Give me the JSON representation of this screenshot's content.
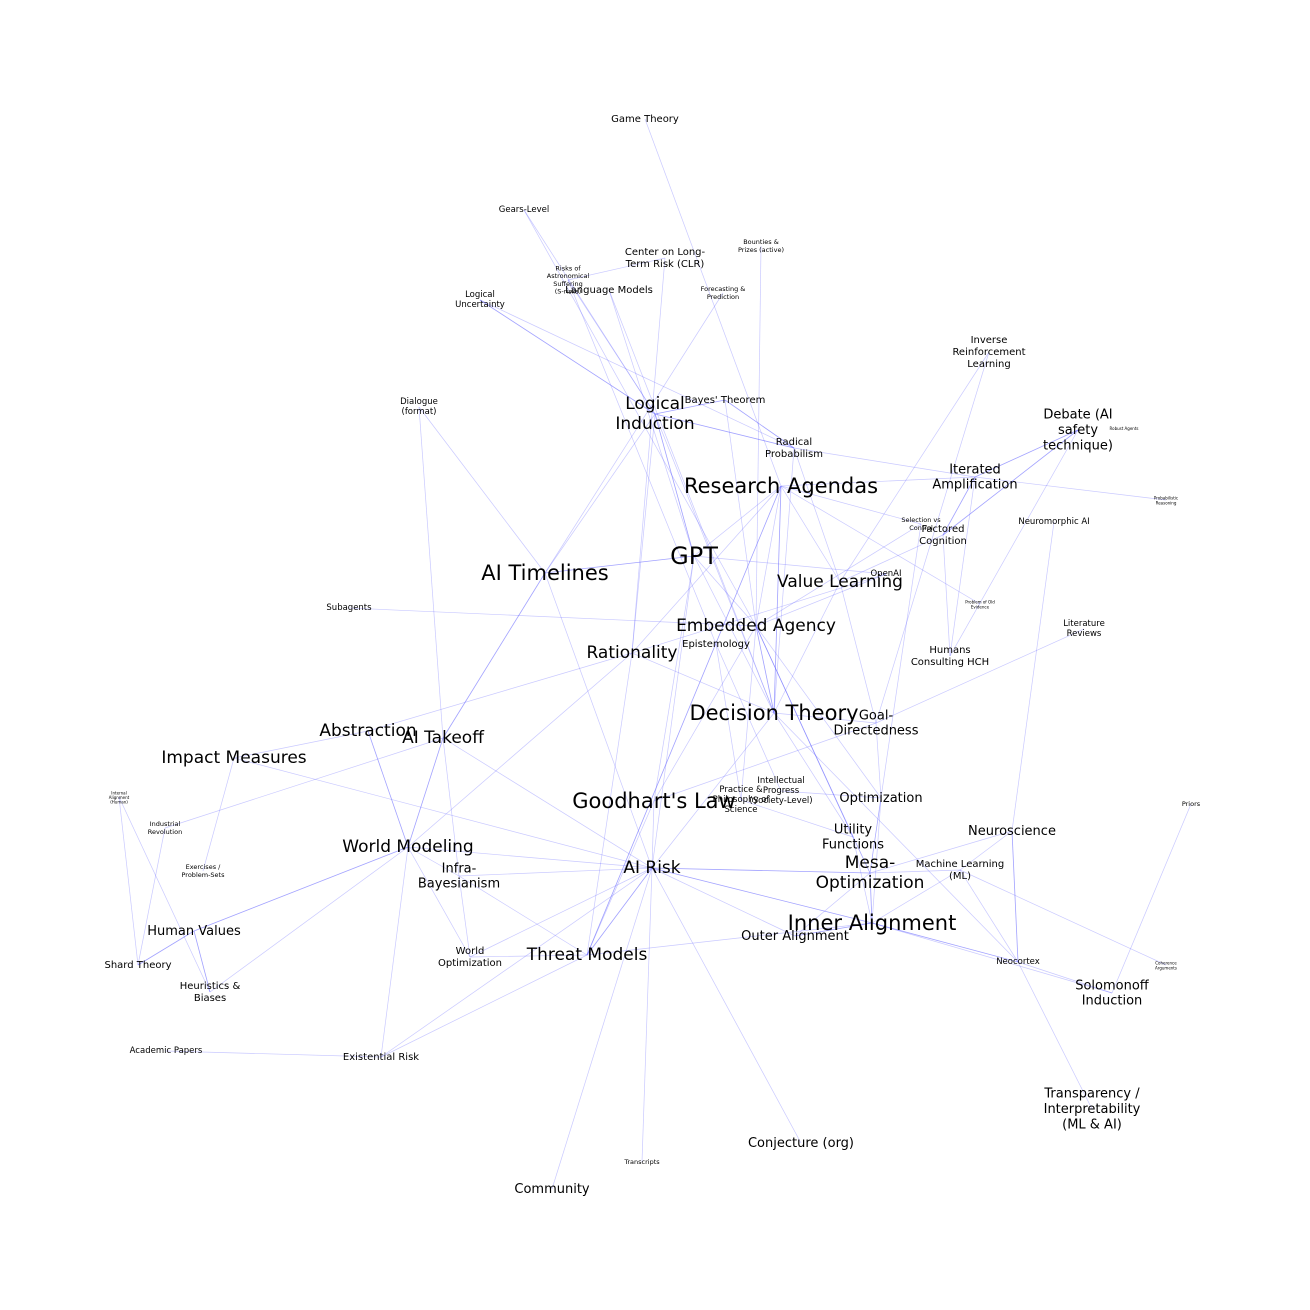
{
  "graph": {
    "colors": {
      "edge": "#6464ff",
      "label": "#000000",
      "background": "#ffffff"
    },
    "nodes": [
      {
        "id": "game_theory",
        "label": [
          "Game Theory"
        ],
        "size": "s"
      },
      {
        "id": "gears_level",
        "label": [
          "Gears-Level"
        ],
        "size": "xs"
      },
      {
        "id": "clr",
        "label": [
          "Center on Long-",
          "Term Risk (CLR)"
        ],
        "size": "s"
      },
      {
        "id": "bounties",
        "label": [
          "Bounties &",
          "Prizes (active)"
        ],
        "size": "xxs"
      },
      {
        "id": "risks_suffering",
        "label": [
          "Risks of",
          "Astronomical",
          "Suffering",
          "(S-risks)"
        ],
        "size": "xxs"
      },
      {
        "id": "language_models",
        "label": [
          "Language Models"
        ],
        "size": "s"
      },
      {
        "id": "forecasting",
        "label": [
          "Forecasting &",
          "Prediction"
        ],
        "size": "xxs"
      },
      {
        "id": "logical_uncertainty",
        "label": [
          "Logical",
          "Uncertainty"
        ],
        "size": "xs"
      },
      {
        "id": "inverse_rl",
        "label": [
          "Inverse",
          "Reinforcement",
          "Learning"
        ],
        "size": "s"
      },
      {
        "id": "dialogue",
        "label": [
          "Dialogue",
          "(format)"
        ],
        "size": "xs"
      },
      {
        "id": "logical_induction",
        "label": [
          "Logical",
          "Induction"
        ],
        "size": "l"
      },
      {
        "id": "bayes",
        "label": [
          "Bayes' Theorem"
        ],
        "size": "s"
      },
      {
        "id": "debate",
        "label": [
          "Debate (AI",
          "safety",
          "technique)"
        ],
        "size": "m"
      },
      {
        "id": "robust_agents",
        "label": [
          "Robust Agents"
        ],
        "size": "xxxs"
      },
      {
        "id": "radical_prob",
        "label": [
          "Radical",
          "Probabilism"
        ],
        "size": "s"
      },
      {
        "id": "iterated_amp",
        "label": [
          "Iterated",
          "Amplification"
        ],
        "size": "m"
      },
      {
        "id": "research_agendas",
        "label": [
          "Research Agendas"
        ],
        "size": "xl"
      },
      {
        "id": "probabilistic_reasoning",
        "label": [
          "Probabilistic",
          "Reasoning"
        ],
        "size": "xxxs"
      },
      {
        "id": "selection_control",
        "label": [
          "Selection vs",
          "Control"
        ],
        "size": "xxs"
      },
      {
        "id": "neuromorphic",
        "label": [
          "Neuromorphic AI"
        ],
        "size": "xs"
      },
      {
        "id": "factored_cognition",
        "label": [
          "Factored",
          "Cognition"
        ],
        "size": "s"
      },
      {
        "id": "gpt",
        "label": [
          "GPT"
        ],
        "size": "xxl"
      },
      {
        "id": "ai_timelines",
        "label": [
          "AI Timelines"
        ],
        "size": "xl"
      },
      {
        "id": "openai",
        "label": [
          "OpenAI"
        ],
        "size": "xs"
      },
      {
        "id": "value_learning",
        "label": [
          "Value Learning"
        ],
        "size": "l"
      },
      {
        "id": "fixed_points",
        "label": [
          "Problem of Old",
          "Evidence"
        ],
        "size": "xxxs"
      },
      {
        "id": "subagents",
        "label": [
          "Subagents"
        ],
        "size": "xs"
      },
      {
        "id": "literature_reviews",
        "label": [
          "Literature",
          "Reviews"
        ],
        "size": "xs"
      },
      {
        "id": "embedded_agency",
        "label": [
          "Embedded Agency"
        ],
        "size": "l"
      },
      {
        "id": "epistemology",
        "label": [
          "Epistemology"
        ],
        "size": "s"
      },
      {
        "id": "humans_hch",
        "label": [
          "Humans",
          "Consulting HCH"
        ],
        "size": "s"
      },
      {
        "id": "rationality",
        "label": [
          "Rationality"
        ],
        "size": "l"
      },
      {
        "id": "decision_theory",
        "label": [
          "Decision Theory"
        ],
        "size": "xl"
      },
      {
        "id": "goal_directedness",
        "label": [
          "Goal-",
          "Directedness"
        ],
        "size": "m"
      },
      {
        "id": "abstraction",
        "label": [
          "Abstraction"
        ],
        "size": "l"
      },
      {
        "id": "ai_takeoff",
        "label": [
          "AI Takeoff"
        ],
        "size": "l"
      },
      {
        "id": "impact_measures",
        "label": [
          "Impact Measures"
        ],
        "size": "l"
      },
      {
        "id": "intellectual_progress",
        "label": [
          "Intellectual",
          "Progress",
          "(Society-Level)"
        ],
        "size": "xs"
      },
      {
        "id": "practice_philosophy",
        "label": [
          "Practice &",
          "Philosophy of",
          "Science"
        ],
        "size": "xs"
      },
      {
        "id": "internal_alignment",
        "label": [
          "Internal",
          "Alignment",
          "(Human)"
        ],
        "size": "xxxs"
      },
      {
        "id": "goodharts_law",
        "label": [
          "Goodhart's Law"
        ],
        "size": "xl"
      },
      {
        "id": "optimization",
        "label": [
          "Optimization"
        ],
        "size": "m"
      },
      {
        "id": "priors",
        "label": [
          "Priors"
        ],
        "size": "xxs"
      },
      {
        "id": "industrial_revolution",
        "label": [
          "Industrial",
          "Revolution"
        ],
        "size": "xxs"
      },
      {
        "id": "utility_functions",
        "label": [
          "Utility",
          "Functions"
        ],
        "size": "m"
      },
      {
        "id": "neuroscience",
        "label": [
          "Neuroscience"
        ],
        "size": "m"
      },
      {
        "id": "world_modeling",
        "label": [
          "World Modeling"
        ],
        "size": "l"
      },
      {
        "id": "exercises",
        "label": [
          "Exercises /",
          "Problem-Sets"
        ],
        "size": "xxs"
      },
      {
        "id": "mesa_optimization",
        "label": [
          "Mesa-",
          "Optimization"
        ],
        "size": "l"
      },
      {
        "id": "infra_bayesianism",
        "label": [
          "Infra-",
          "Bayesianism"
        ],
        "size": "m"
      },
      {
        "id": "ai_risk",
        "label": [
          "AI Risk"
        ],
        "size": "l"
      },
      {
        "id": "machine_learning",
        "label": [
          "Machine Learning",
          "(ML)"
        ],
        "size": "s"
      },
      {
        "id": "inner_alignment",
        "label": [
          "Inner Alignment"
        ],
        "size": "xl"
      },
      {
        "id": "human_values",
        "label": [
          "Human Values"
        ],
        "size": "m"
      },
      {
        "id": "outer_alignment",
        "label": [
          "Outer Alignment"
        ],
        "size": "m"
      },
      {
        "id": "world_optimization",
        "label": [
          "World",
          "Optimization"
        ],
        "size": "s"
      },
      {
        "id": "threat_models",
        "label": [
          "Threat Models"
        ],
        "size": "l"
      },
      {
        "id": "shard_theory",
        "label": [
          "Shard Theory"
        ],
        "size": "s"
      },
      {
        "id": "neocortex",
        "label": [
          "Neocortex"
        ],
        "size": "xs"
      },
      {
        "id": "coherence_arguments",
        "label": [
          "Coherence",
          "Arguments"
        ],
        "size": "xxxs"
      },
      {
        "id": "heuristics_biases",
        "label": [
          "Heuristics &",
          "Biases"
        ],
        "size": "s"
      },
      {
        "id": "solomonoff",
        "label": [
          "Solomonoff",
          "Induction"
        ],
        "size": "m"
      },
      {
        "id": "academic_papers",
        "label": [
          "Academic Papers"
        ],
        "size": "xs"
      },
      {
        "id": "existential_risk",
        "label": [
          "Existential Risk"
        ],
        "size": "s"
      },
      {
        "id": "transparency",
        "label": [
          "Transparency /",
          "Interpretability",
          "(ML & AI)"
        ],
        "size": "m"
      },
      {
        "id": "conjecture",
        "label": [
          "Conjecture (org)"
        ],
        "size": "m"
      },
      {
        "id": "transcripts",
        "label": [
          "Transcripts"
        ],
        "size": "xxs"
      },
      {
        "id": "community",
        "label": [
          "Community"
        ],
        "size": "m"
      }
    ],
    "edges": [
      [
        "game_theory",
        "research_agendas"
      ],
      [
        "gears_level",
        "logical_induction"
      ],
      [
        "gears_level",
        "embedded_agency"
      ],
      [
        "clr",
        "risks_suffering"
      ],
      [
        "clr",
        "rationality"
      ],
      [
        "risks_suffering",
        "epistemology"
      ],
      [
        "risks_suffering",
        "logical_induction"
      ],
      [
        "language_models",
        "gpt"
      ],
      [
        "language_models",
        "decision_theory"
      ],
      [
        "bounties",
        "embedded_agency"
      ],
      [
        "forecasting",
        "ai_timelines"
      ],
      [
        "logical_uncertainty",
        "logical_induction",
        "strong"
      ],
      [
        "logical_uncertainty",
        "radical_prob"
      ],
      [
        "logical_induction",
        "bayes",
        "strong"
      ],
      [
        "logical_induction",
        "radical_prob",
        "strong"
      ],
      [
        "logical_induction",
        "gpt",
        "strong"
      ],
      [
        "logical_induction",
        "rationality"
      ],
      [
        "logical_induction",
        "decision_theory"
      ],
      [
        "bayes",
        "radical_prob",
        "strong"
      ],
      [
        "bayes",
        "embedded_agency"
      ],
      [
        "radical_prob",
        "iterated_amp"
      ],
      [
        "radical_prob",
        "value_learning"
      ],
      [
        "radical_prob",
        "decision_theory"
      ],
      [
        "dialogue",
        "ai_timelines"
      ],
      [
        "dialogue",
        "ai_takeoff"
      ],
      [
        "inverse_rl",
        "value_learning"
      ],
      [
        "inverse_rl",
        "goal_directedness"
      ],
      [
        "debate",
        "iterated_amp",
        "strong"
      ],
      [
        "debate",
        "factored_cognition",
        "strong"
      ],
      [
        "debate",
        "humans_hch"
      ],
      [
        "iterated_amp",
        "factored_cognition",
        "strong"
      ],
      [
        "iterated_amp",
        "humans_hch"
      ],
      [
        "iterated_amp",
        "probabilistic_reasoning"
      ],
      [
        "research_agendas",
        "iterated_amp"
      ],
      [
        "research_agendas",
        "gpt"
      ],
      [
        "research_agendas",
        "embedded_agency"
      ],
      [
        "research_agendas",
        "value_learning"
      ],
      [
        "research_agendas",
        "decision_theory",
        "strong"
      ],
      [
        "research_agendas",
        "rationality"
      ],
      [
        "research_agendas",
        "fixed_points"
      ],
      [
        "research_agendas",
        "selection_control"
      ],
      [
        "research_agendas",
        "threat_models",
        "strong"
      ],
      [
        "selection_control",
        "embedded_agency"
      ],
      [
        "selection_control",
        "mesa_optimization"
      ],
      [
        "factored_cognition",
        "humans_hch"
      ],
      [
        "factored_cognition",
        "value_learning"
      ],
      [
        "gpt",
        "ai_timelines",
        "strong"
      ],
      [
        "gpt",
        "openai"
      ],
      [
        "gpt",
        "embedded_agency"
      ],
      [
        "gpt",
        "decision_theory"
      ],
      [
        "gpt",
        "ai_risk"
      ],
      [
        "gpt",
        "goodharts_law"
      ],
      [
        "ai_timelines",
        "ai_takeoff",
        "strong"
      ],
      [
        "ai_timelines",
        "ai_risk"
      ],
      [
        "ai_timelines",
        "logical_induction"
      ],
      [
        "openai",
        "embedded_agency"
      ],
      [
        "openai",
        "rationality"
      ],
      [
        "subagents",
        "embedded_agency"
      ],
      [
        "value_learning",
        "goal_directedness"
      ],
      [
        "value_learning",
        "decision_theory"
      ],
      [
        "embedded_agency",
        "decision_theory",
        "strong"
      ],
      [
        "embedded_agency",
        "utility_functions",
        "strong"
      ],
      [
        "embedded_agency",
        "optimization"
      ],
      [
        "embedded_agency",
        "goodharts_law"
      ],
      [
        "embedded_agency",
        "practice_philosophy"
      ],
      [
        "embedded_agency",
        "mesa_optimization"
      ],
      [
        "epistemology",
        "intellectual_progress"
      ],
      [
        "epistemology",
        "practice_philosophy"
      ],
      [
        "rationality",
        "abstraction"
      ],
      [
        "rationality",
        "world_modeling"
      ],
      [
        "rationality",
        "decision_theory"
      ],
      [
        "rationality",
        "threat_models"
      ],
      [
        "decision_theory",
        "goal_directedness"
      ],
      [
        "decision_theory",
        "utility_functions"
      ],
      [
        "decision_theory",
        "ai_risk"
      ],
      [
        "decision_theory",
        "neocortex"
      ],
      [
        "goal_directedness",
        "literature_reviews"
      ],
      [
        "goal_directedness",
        "optimization"
      ],
      [
        "goal_directedness",
        "goodharts_law"
      ],
      [
        "abstraction",
        "world_modeling",
        "strong"
      ],
      [
        "abstraction",
        "impact_measures"
      ],
      [
        "ai_takeoff",
        "world_modeling",
        "strong"
      ],
      [
        "ai_takeoff",
        "ai_risk"
      ],
      [
        "ai_takeoff",
        "infra_bayesianism"
      ],
      [
        "ai_takeoff",
        "industrial_revolution"
      ],
      [
        "impact_measures",
        "exercises"
      ],
      [
        "impact_measures",
        "ai_risk"
      ],
      [
        "internal_alignment",
        "shard_theory"
      ],
      [
        "internal_alignment",
        "heuristics_biases"
      ],
      [
        "goodharts_law",
        "ai_risk"
      ],
      [
        "goodharts_law",
        "threat_models"
      ],
      [
        "optimization",
        "mesa_optimization"
      ],
      [
        "optimization",
        "inner_alignment"
      ],
      [
        "utility_functions",
        "mesa_optimization"
      ],
      [
        "utility_functions",
        "inner_alignment"
      ],
      [
        "neuroscience",
        "neuromorphic"
      ],
      [
        "neuroscience",
        "mesa_optimization"
      ],
      [
        "neuroscience",
        "neocortex",
        "strong"
      ],
      [
        "neuroscience",
        "machine_learning"
      ],
      [
        "world_modeling",
        "infra_bayesianism"
      ],
      [
        "world_modeling",
        "ai_risk"
      ],
      [
        "world_modeling",
        "human_values",
        "strong"
      ],
      [
        "world_modeling",
        "heuristics_biases"
      ],
      [
        "world_modeling",
        "world_optimization"
      ],
      [
        "mesa_optimization",
        "inner_alignment",
        "strong"
      ],
      [
        "mesa_optimization",
        "machine_learning"
      ],
      [
        "mesa_optimization",
        "ai_risk",
        "strong"
      ],
      [
        "mesa_optimization",
        "outer_alignment"
      ],
      [
        "infra_bayesianism",
        "ai_risk"
      ],
      [
        "infra_bayesianism",
        "threat_models"
      ],
      [
        "infra_bayesianism",
        "world_optimization"
      ],
      [
        "ai_risk",
        "inner_alignment",
        "strong"
      ],
      [
        "ai_risk",
        "outer_alignment"
      ],
      [
        "ai_risk",
        "threat_models",
        "strong"
      ],
      [
        "ai_risk",
        "world_optimization"
      ],
      [
        "ai_risk",
        "existential_risk"
      ],
      [
        "ai_risk",
        "conjecture"
      ],
      [
        "ai_risk",
        "transcripts"
      ],
      [
        "ai_risk",
        "community"
      ],
      [
        "machine_learning",
        "inner_alignment"
      ],
      [
        "machine_learning",
        "neocortex"
      ],
      [
        "machine_learning",
        "coherence_arguments"
      ],
      [
        "inner_alignment",
        "outer_alignment",
        "strong"
      ],
      [
        "inner_alignment",
        "threat_models"
      ],
      [
        "inner_alignment",
        "neocortex",
        "strong"
      ],
      [
        "inner_alignment",
        "solomonoff"
      ],
      [
        "human_values",
        "shard_theory",
        "strong"
      ],
      [
        "human_values",
        "heuristics_biases",
        "strong"
      ],
      [
        "industrial_revolution",
        "shard_theory"
      ],
      [
        "threat_models",
        "world_optimization"
      ],
      [
        "threat_models",
        "existential_risk"
      ],
      [
        "neocortex",
        "transparency"
      ],
      [
        "neocortex",
        "solomonoff"
      ],
      [
        "solomonoff",
        "priors"
      ],
      [
        "academic_papers",
        "existential_risk"
      ],
      [
        "existential_risk",
        "world_modeling"
      ],
      [
        "practice_philosophy",
        "utility_functions"
      ],
      [
        "intellectual_progress",
        "optimization"
      ]
    ]
  }
}
